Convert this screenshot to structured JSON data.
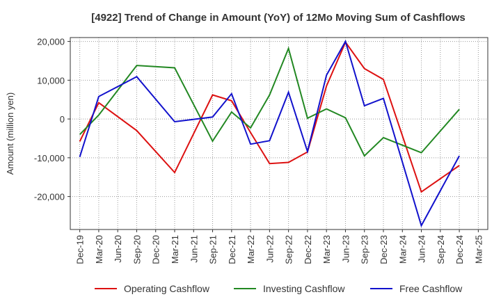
{
  "chart_data": {
    "type": "line",
    "title": "[4922]  Trend of Change in Amount (YoY) of 12Mo Moving Sum of Cashflows",
    "xlabel": "",
    "ylabel": "Amount (million yen)",
    "ylim": [
      -28500,
      21000
    ],
    "yticks": [
      20000,
      10000,
      0,
      -10000,
      -20000
    ],
    "ytick_labels": [
      "20,000",
      "10,000",
      "0",
      "-10,000",
      "-20,000"
    ],
    "categories": [
      "Dec-19",
      "Mar-20",
      "Jun-20",
      "Sep-20",
      "Dec-20",
      "Mar-21",
      "Jun-21",
      "Sep-21",
      "Dec-21",
      "Mar-22",
      "Jun-22",
      "Sep-22",
      "Dec-22",
      "Mar-23",
      "Jun-23",
      "Sep-23",
      "Dec-23",
      "Mar-24",
      "Jun-24",
      "Sep-24",
      "Dec-24",
      "Mar-25"
    ],
    "grid": true,
    "legend_position": "bottom",
    "series": [
      {
        "name": "Operating Cashflow",
        "color": "#dd1111",
        "values": [
          -5800,
          4200,
          null,
          -3000,
          null,
          -13800,
          null,
          6200,
          4700,
          -3500,
          -11500,
          -11200,
          -8500,
          8500,
          19800,
          13000,
          10200,
          null,
          -18800,
          null,
          -12000,
          null
        ]
      },
      {
        "name": "Investing Cashflow",
        "color": "#228822",
        "values": [
          -4000,
          1000,
          null,
          13800,
          null,
          13200,
          null,
          -5700,
          1800,
          -2300,
          6200,
          18200,
          200,
          2600,
          300,
          -9500,
          -4800,
          null,
          -8700,
          null,
          2500,
          null
        ]
      },
      {
        "name": "Free Cashflow",
        "color": "#1111cc",
        "values": [
          -9800,
          5800,
          null,
          10900,
          null,
          -700,
          null,
          500,
          6500,
          -6500,
          -5600,
          6900,
          -8400,
          11300,
          20000,
          3400,
          5300,
          null,
          -27500,
          null,
          -9500,
          null
        ]
      }
    ]
  }
}
